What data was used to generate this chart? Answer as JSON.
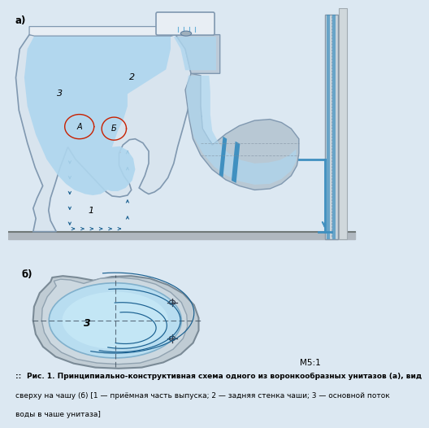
{
  "background_color": "#dce8f2",
  "title_a": "а)",
  "title_b": "б)",
  "caption_line1_prefix": ":: ",
  "caption_line1_bold": "Рис. 1. Принципиально-конструктивная схема одного из воронкообразных унитазов (а), вид",
  "caption_line2": "сверху на чашу (б) [1 — приёмная часть выпуска; 2 — задняя стенка чаши; 3 — основной поток",
  "caption_line3": "воды в чаше унитаза]",
  "scale_label": "М5:1",
  "label_1": "1",
  "label_2": "2",
  "label_3": "3",
  "label_A": "А",
  "label_B": "Б",
  "color_bg": "#dce8f2",
  "color_blue_light": "#aed6ee",
  "color_blue_med": "#5baad4",
  "color_blue_dark": "#2478a8",
  "color_body_light": "#d8e4ee",
  "color_body_mid": "#bccad8",
  "color_body_dark": "#8098b0",
  "color_rim_light": "#e8eef4",
  "color_arrow_blue": "#1a6090",
  "color_arrow_red": "#c82000",
  "color_floor": "#999999",
  "color_pipe_silver": "#b8c8d4",
  "color_pipe_blue": "#4090c0",
  "color_wall_line": "#888888"
}
